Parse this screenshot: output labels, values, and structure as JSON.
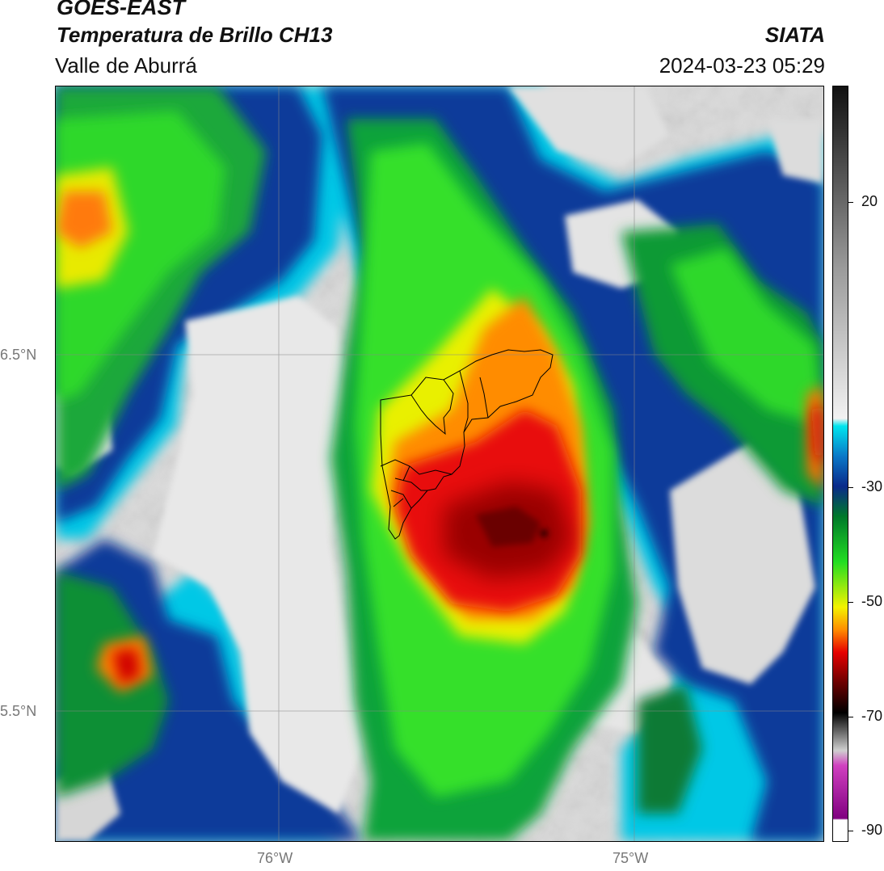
{
  "header": {
    "title_line1": "GOES-EAST",
    "title_line2": "Temperatura de Brillo CH13",
    "subtitle": "Valle de Aburrá",
    "organization": "SIATA",
    "datetime": "2024-03-23 05:29"
  },
  "axes": {
    "lat_labels": [
      "6.5°N",
      "5.5°N"
    ],
    "lon_labels": [
      "76°W",
      "75°W"
    ]
  },
  "colorbar": {
    "tick_labels": [
      "20",
      "-30",
      "-50",
      "-70",
      "-90"
    ],
    "colors": {
      "warm_gray_top": "#111111",
      "light": "#f2f2f2",
      "cyan": "#00e5ee",
      "blue": "#0a2a8a",
      "green_dark": "#00792a",
      "green": "#22dd22",
      "yellow": "#f3f300",
      "orange": "#ff8c00",
      "red": "#e60000",
      "dark_red": "#6b0000",
      "black": "#000000",
      "magenta": "#d040c0",
      "purple": "#800080",
      "white_bottom": "#ffffff"
    }
  }
}
